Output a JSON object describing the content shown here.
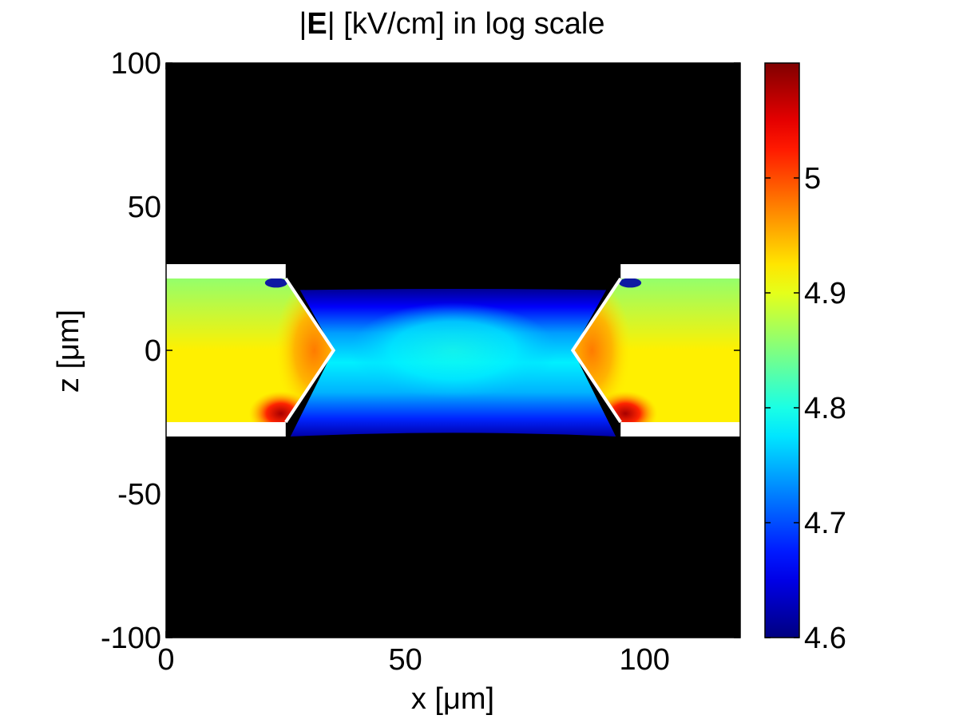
{
  "chart_data": {
    "type": "heatmap",
    "title_parts": {
      "pre": "|",
      "bold": "E",
      "post": "| [kV/cm] in log scale"
    },
    "xlabel": "x [μm]",
    "ylabel": "z [μm]",
    "xlim": [
      0,
      120
    ],
    "ylim": [
      -100,
      100
    ],
    "x_ticks": [
      "0",
      "50",
      "100"
    ],
    "y_ticks": [
      "100",
      "50",
      "0",
      "-50",
      "-100"
    ],
    "colorbar": {
      "colormap": "jet",
      "range": [
        4.6,
        5.1
      ],
      "tick_values": [
        4.6,
        4.7,
        4.8,
        4.9,
        5.0
      ],
      "tick_labels": [
        "4.6",
        "4.7",
        "4.8",
        "4.9",
        "5"
      ]
    },
    "grid": false,
    "background_value_color": "#000000",
    "geometry": {
      "channel_z": [
        -25,
        25
      ],
      "electrode_band_z": [
        [
          25,
          30
        ],
        [
          -30,
          -25
        ]
      ],
      "left_electrode": {
        "x_base": 25,
        "x_tip": 35,
        "z_tip": 0
      },
      "right_electrode": {
        "x_base": 95,
        "x_tip": 85,
        "z_tip": 0
      }
    },
    "field_regions": [
      {
        "name": "left-inlet",
        "x": [
          0,
          25
        ],
        "value_center": 4.92,
        "value_edge": 4.86
      },
      {
        "name": "right-inlet",
        "x": [
          95,
          120
        ],
        "value_center": 4.92,
        "value_edge": 4.86
      },
      {
        "name": "central-gap",
        "x": [
          35,
          85
        ],
        "value_center": 4.78,
        "value_edge": 4.62
      },
      {
        "name": "left-tip-hotspot",
        "x": 35,
        "z": 0,
        "value": 4.98
      },
      {
        "name": "right-tip-hotspot",
        "x": 85,
        "z": 0,
        "value": 4.98
      },
      {
        "name": "left-corner-max",
        "x": 25,
        "z": -25,
        "value": 5.08
      },
      {
        "name": "right-corner-max",
        "x": 95,
        "z": -25,
        "value": 5.08
      }
    ]
  }
}
